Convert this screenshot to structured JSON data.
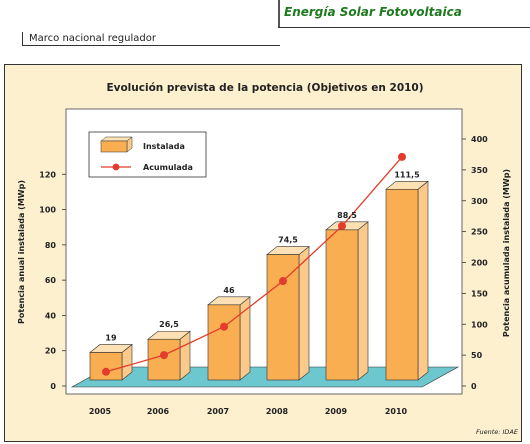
{
  "header": {
    "section_title": "Energía Solar Fotovoltaica",
    "breadcrumb": "Marco nacional regulador"
  },
  "colors": {
    "section_title": "#1e7a1e",
    "panel_background": "#fdf0cf",
    "plot_background": "#ffffff",
    "floor": "#6cc7cf",
    "bar_front": "#f9ae51",
    "bar_top": "#fde1b5",
    "bar_side": "#fbc98a",
    "line": "#e43c2c"
  },
  "chart_data": {
    "type": "bar",
    "title": "Evolución prevista de la potencia (Objetivos en 2010)",
    "categories": [
      "2005",
      "2006",
      "2007",
      "2008",
      "2009",
      "2010"
    ],
    "series": [
      {
        "name": "Instalada",
        "type": "bar",
        "axis": "left",
        "values": [
          19,
          26.5,
          46,
          74.5,
          88.5,
          111.5
        ],
        "labels": [
          "19",
          "26,5",
          "46",
          "74,5",
          "88,5",
          "111,5"
        ]
      },
      {
        "name": "Acumulada",
        "type": "line",
        "axis": "right",
        "values": [
          23,
          50,
          96,
          170,
          259,
          371
        ]
      }
    ],
    "ylabel": "Potencia anual instalada (MWp)",
    "y2label": "Potencia acumulada instalada (MWp)",
    "ylim": [
      0,
      140
    ],
    "y2lim": [
      0,
      400
    ],
    "yticks": [
      0,
      20,
      40,
      60,
      80,
      100,
      120
    ],
    "y2ticks": [
      0,
      50,
      100,
      150,
      200,
      250,
      300,
      350,
      400
    ],
    "grid": false,
    "legend_position": "top-left",
    "source": "Fuente: IDAE"
  }
}
